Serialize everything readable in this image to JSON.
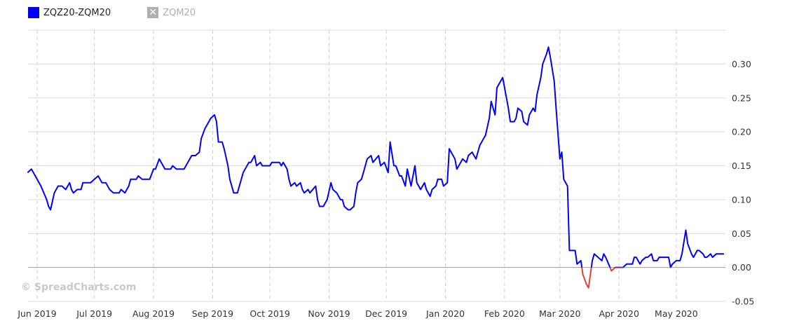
{
  "legend": {
    "items": [
      {
        "label": "ZQZ20-ZQM20",
        "color": "#0000ff",
        "state": "visible",
        "icon": "color-square"
      },
      {
        "label": "ZQM20",
        "color": "#aab0b3",
        "state": "hidden",
        "icon": "x-box-icon"
      }
    ]
  },
  "watermark": "© SpreadCharts.com",
  "chart_data": {
    "type": "line",
    "title": "",
    "xlabel": "",
    "ylabel": "",
    "ylim": [
      -0.05,
      0.35
    ],
    "grid": true,
    "y_axis_position": "right",
    "legend_position": "top-left",
    "negative_color": "#e0412f",
    "y_ticks": [
      "0.30",
      "0.25",
      "0.20",
      "0.15",
      "0.10",
      "0.05",
      "0.00",
      "-0.05"
    ],
    "x_ticks": [
      {
        "date": "2019-06-01",
        "label": "Jun 2019"
      },
      {
        "date": "2019-07-01",
        "label": "Jul 2019"
      },
      {
        "date": "2019-08-01",
        "label": "Aug 2019"
      },
      {
        "date": "2019-09-01",
        "label": "Sep 2019"
      },
      {
        "date": "2019-10-01",
        "label": "Oct 2019"
      },
      {
        "date": "2019-11-01",
        "label": "Nov 2019"
      },
      {
        "date": "2019-12-01",
        "label": "Dec 2019"
      },
      {
        "date": "2020-01-01",
        "label": "Jan 2020"
      },
      {
        "date": "2020-02-01",
        "label": "Feb 2020"
      },
      {
        "date": "2020-03-01",
        "label": "Mar 2020"
      },
      {
        "date": "2020-04-01",
        "label": "Apr 2020"
      },
      {
        "date": "2020-05-01",
        "label": "May 2020"
      }
    ],
    "series": [
      {
        "name": "ZQZ20-ZQM20",
        "color": "#0000ff",
        "points": [
          [
            "2019-05-27",
            0.14
          ],
          [
            "2019-05-29",
            0.145
          ],
          [
            "2019-05-31",
            0.135
          ],
          [
            "2019-06-03",
            0.12
          ],
          [
            "2019-06-06",
            0.1
          ],
          [
            "2019-06-07",
            0.09
          ],
          [
            "2019-06-08",
            0.085
          ],
          [
            "2019-06-10",
            0.11
          ],
          [
            "2019-06-12",
            0.12
          ],
          [
            "2019-06-14",
            0.12
          ],
          [
            "2019-06-16",
            0.115
          ],
          [
            "2019-06-18",
            0.125
          ],
          [
            "2019-06-19",
            0.115
          ],
          [
            "2019-06-20",
            0.11
          ],
          [
            "2019-06-22",
            0.115
          ],
          [
            "2019-06-24",
            0.115
          ],
          [
            "2019-06-25",
            0.125
          ],
          [
            "2019-06-29",
            0.125
          ],
          [
            "2019-07-01",
            0.13
          ],
          [
            "2019-07-03",
            0.135
          ],
          [
            "2019-07-05",
            0.125
          ],
          [
            "2019-07-07",
            0.125
          ],
          [
            "2019-07-09",
            0.115
          ],
          [
            "2019-07-11",
            0.11
          ],
          [
            "2019-07-14",
            0.11
          ],
          [
            "2019-07-15",
            0.115
          ],
          [
            "2019-07-17",
            0.11
          ],
          [
            "2019-07-19",
            0.12
          ],
          [
            "2019-07-20",
            0.13
          ],
          [
            "2019-07-23",
            0.13
          ],
          [
            "2019-07-24",
            0.135
          ],
          [
            "2019-07-26",
            0.13
          ],
          [
            "2019-07-30",
            0.13
          ],
          [
            "2019-08-01",
            0.145
          ],
          [
            "2019-08-02",
            0.145
          ],
          [
            "2019-08-04",
            0.16
          ],
          [
            "2019-08-06",
            0.15
          ],
          [
            "2019-08-07",
            0.145
          ],
          [
            "2019-08-10",
            0.145
          ],
          [
            "2019-08-11",
            0.15
          ],
          [
            "2019-08-13",
            0.145
          ],
          [
            "2019-08-17",
            0.145
          ],
          [
            "2019-08-19",
            0.155
          ],
          [
            "2019-08-21",
            0.165
          ],
          [
            "2019-08-23",
            0.165
          ],
          [
            "2019-08-25",
            0.17
          ],
          [
            "2019-08-26",
            0.19
          ],
          [
            "2019-08-28",
            0.205
          ],
          [
            "2019-08-29",
            0.21
          ],
          [
            "2019-08-31",
            0.22
          ],
          [
            "2019-09-02",
            0.225
          ],
          [
            "2019-09-03",
            0.215
          ],
          [
            "2019-09-04",
            0.185
          ],
          [
            "2019-09-06",
            0.185
          ],
          [
            "2019-09-07",
            0.175
          ],
          [
            "2019-09-09",
            0.15
          ],
          [
            "2019-09-10",
            0.13
          ],
          [
            "2019-09-12",
            0.11
          ],
          [
            "2019-09-14",
            0.11
          ],
          [
            "2019-09-15",
            0.12
          ],
          [
            "2019-09-17",
            0.14
          ],
          [
            "2019-09-18",
            0.145
          ],
          [
            "2019-09-20",
            0.155
          ],
          [
            "2019-09-21",
            0.155
          ],
          [
            "2019-09-23",
            0.165
          ],
          [
            "2019-09-24",
            0.15
          ],
          [
            "2019-09-26",
            0.155
          ],
          [
            "2019-09-27",
            0.15
          ],
          [
            "2019-10-01",
            0.15
          ],
          [
            "2019-10-02",
            0.155
          ],
          [
            "2019-10-06",
            0.155
          ],
          [
            "2019-10-07",
            0.15
          ],
          [
            "2019-10-08",
            0.155
          ],
          [
            "2019-10-10",
            0.145
          ],
          [
            "2019-10-11",
            0.13
          ],
          [
            "2019-10-12",
            0.12
          ],
          [
            "2019-10-14",
            0.125
          ],
          [
            "2019-10-15",
            0.12
          ],
          [
            "2019-10-17",
            0.125
          ],
          [
            "2019-10-18",
            0.115
          ],
          [
            "2019-10-19",
            0.11
          ],
          [
            "2019-10-21",
            0.115
          ],
          [
            "2019-10-22",
            0.11
          ],
          [
            "2019-10-25",
            0.12
          ],
          [
            "2019-10-26",
            0.1
          ],
          [
            "2019-10-27",
            0.09
          ],
          [
            "2019-10-29",
            0.09
          ],
          [
            "2019-10-31",
            0.1
          ],
          [
            "2019-11-02",
            0.125
          ],
          [
            "2019-11-03",
            0.115
          ],
          [
            "2019-11-05",
            0.11
          ],
          [
            "2019-11-07",
            0.1
          ],
          [
            "2019-11-08",
            0.1
          ],
          [
            "2019-11-09",
            0.09
          ],
          [
            "2019-11-11",
            0.085
          ],
          [
            "2019-11-12",
            0.085
          ],
          [
            "2019-11-14",
            0.09
          ],
          [
            "2019-11-15",
            0.11
          ],
          [
            "2019-11-16",
            0.125
          ],
          [
            "2019-11-18",
            0.13
          ],
          [
            "2019-11-19",
            0.14
          ],
          [
            "2019-11-21",
            0.16
          ],
          [
            "2019-11-23",
            0.165
          ],
          [
            "2019-11-24",
            0.155
          ],
          [
            "2019-11-27",
            0.165
          ],
          [
            "2019-11-28",
            0.15
          ],
          [
            "2019-11-30",
            0.155
          ],
          [
            "2019-12-02",
            0.14
          ],
          [
            "2019-12-03",
            0.185
          ],
          [
            "2019-12-05",
            0.15
          ],
          [
            "2019-12-06",
            0.15
          ],
          [
            "2019-12-08",
            0.135
          ],
          [
            "2019-12-09",
            0.135
          ],
          [
            "2019-12-11",
            0.12
          ],
          [
            "2019-12-12",
            0.145
          ],
          [
            "2019-12-14",
            0.12
          ],
          [
            "2019-12-16",
            0.15
          ],
          [
            "2019-12-17",
            0.125
          ],
          [
            "2019-12-18",
            0.12
          ],
          [
            "2019-12-19",
            0.115
          ],
          [
            "2019-12-21",
            0.125
          ],
          [
            "2019-12-22",
            0.115
          ],
          [
            "2019-12-24",
            0.105
          ],
          [
            "2019-12-25",
            0.115
          ],
          [
            "2019-12-27",
            0.12
          ],
          [
            "2019-12-28",
            0.13
          ],
          [
            "2019-12-30",
            0.13
          ],
          [
            "2019-12-31",
            0.12
          ],
          [
            "2020-01-02",
            0.125
          ],
          [
            "2020-01-03",
            0.175
          ],
          [
            "2020-01-04",
            0.17
          ],
          [
            "2020-01-06",
            0.16
          ],
          [
            "2020-01-07",
            0.145
          ],
          [
            "2020-01-09",
            0.155
          ],
          [
            "2020-01-10",
            0.16
          ],
          [
            "2020-01-12",
            0.155
          ],
          [
            "2020-01-13",
            0.165
          ],
          [
            "2020-01-15",
            0.17
          ],
          [
            "2020-01-16",
            0.165
          ],
          [
            "2020-01-17",
            0.16
          ],
          [
            "2020-01-19",
            0.18
          ],
          [
            "2020-01-21",
            0.19
          ],
          [
            "2020-01-22",
            0.195
          ],
          [
            "2020-01-24",
            0.22
          ],
          [
            "2020-01-25",
            0.245
          ],
          [
            "2020-01-27",
            0.225
          ],
          [
            "2020-01-28",
            0.265
          ],
          [
            "2020-01-29",
            0.27
          ],
          [
            "2020-01-31",
            0.28
          ],
          [
            "2020-02-01",
            0.265
          ],
          [
            "2020-02-03",
            0.235
          ],
          [
            "2020-02-04",
            0.215
          ],
          [
            "2020-02-06",
            0.215
          ],
          [
            "2020-02-07",
            0.22
          ],
          [
            "2020-02-08",
            0.235
          ],
          [
            "2020-02-10",
            0.23
          ],
          [
            "2020-02-11",
            0.215
          ],
          [
            "2020-02-13",
            0.21
          ],
          [
            "2020-02-14",
            0.225
          ],
          [
            "2020-02-16",
            0.235
          ],
          [
            "2020-02-17",
            0.23
          ],
          [
            "2020-02-18",
            0.255
          ],
          [
            "2020-02-20",
            0.28
          ],
          [
            "2020-02-21",
            0.3
          ],
          [
            "2020-02-23",
            0.315
          ],
          [
            "2020-02-24",
            0.325
          ],
          [
            "2020-02-25",
            0.31
          ],
          [
            "2020-02-27",
            0.275
          ],
          [
            "2020-02-28",
            0.235
          ],
          [
            "2020-03-01",
            0.16
          ],
          [
            "2020-03-02",
            0.17
          ],
          [
            "2020-03-03",
            0.13
          ],
          [
            "2020-03-05",
            0.12
          ],
          [
            "2020-03-06",
            0.025
          ],
          [
            "2020-03-09",
            0.025
          ],
          [
            "2020-03-10",
            0.005
          ],
          [
            "2020-03-12",
            0.01
          ],
          [
            "2020-03-13",
            -0.01
          ],
          [
            "2020-03-15",
            -0.025
          ],
          [
            "2020-03-16",
            -0.03
          ],
          [
            "2020-03-18",
            0.01
          ],
          [
            "2020-03-19",
            0.02
          ],
          [
            "2020-03-21",
            0.015
          ],
          [
            "2020-03-23",
            0.01
          ],
          [
            "2020-03-24",
            0.02
          ],
          [
            "2020-03-25",
            0.015
          ],
          [
            "2020-03-27",
            0.002
          ],
          [
            "2020-03-28",
            -0.005
          ],
          [
            "2020-03-30",
            0.0
          ],
          [
            "2020-04-03",
            0.0
          ],
          [
            "2020-04-05",
            0.005
          ],
          [
            "2020-04-08",
            0.005
          ],
          [
            "2020-04-09",
            0.015
          ],
          [
            "2020-04-10",
            0.015
          ],
          [
            "2020-04-12",
            0.005
          ],
          [
            "2020-04-13",
            0.01
          ],
          [
            "2020-04-15",
            0.015
          ],
          [
            "2020-04-16",
            0.015
          ],
          [
            "2020-04-18",
            0.02
          ],
          [
            "2020-04-19",
            0.01
          ],
          [
            "2020-04-21",
            0.01
          ],
          [
            "2020-04-22",
            0.015
          ],
          [
            "2020-04-27",
            0.015
          ],
          [
            "2020-04-28",
            0.0
          ],
          [
            "2020-04-29",
            0.005
          ],
          [
            "2020-05-01",
            0.01
          ],
          [
            "2020-05-03",
            0.01
          ],
          [
            "2020-05-04",
            0.02
          ],
          [
            "2020-05-06",
            0.055
          ],
          [
            "2020-05-07",
            0.035
          ],
          [
            "2020-05-09",
            0.02
          ],
          [
            "2020-05-10",
            0.015
          ],
          [
            "2020-05-12",
            0.025
          ],
          [
            "2020-05-13",
            0.025
          ],
          [
            "2020-05-15",
            0.02
          ],
          [
            "2020-05-16",
            0.015
          ],
          [
            "2020-05-17",
            0.015
          ],
          [
            "2020-05-19",
            0.02
          ],
          [
            "2020-05-20",
            0.015
          ],
          [
            "2020-05-22",
            0.02
          ],
          [
            "2020-05-26",
            0.02
          ]
        ]
      }
    ]
  }
}
